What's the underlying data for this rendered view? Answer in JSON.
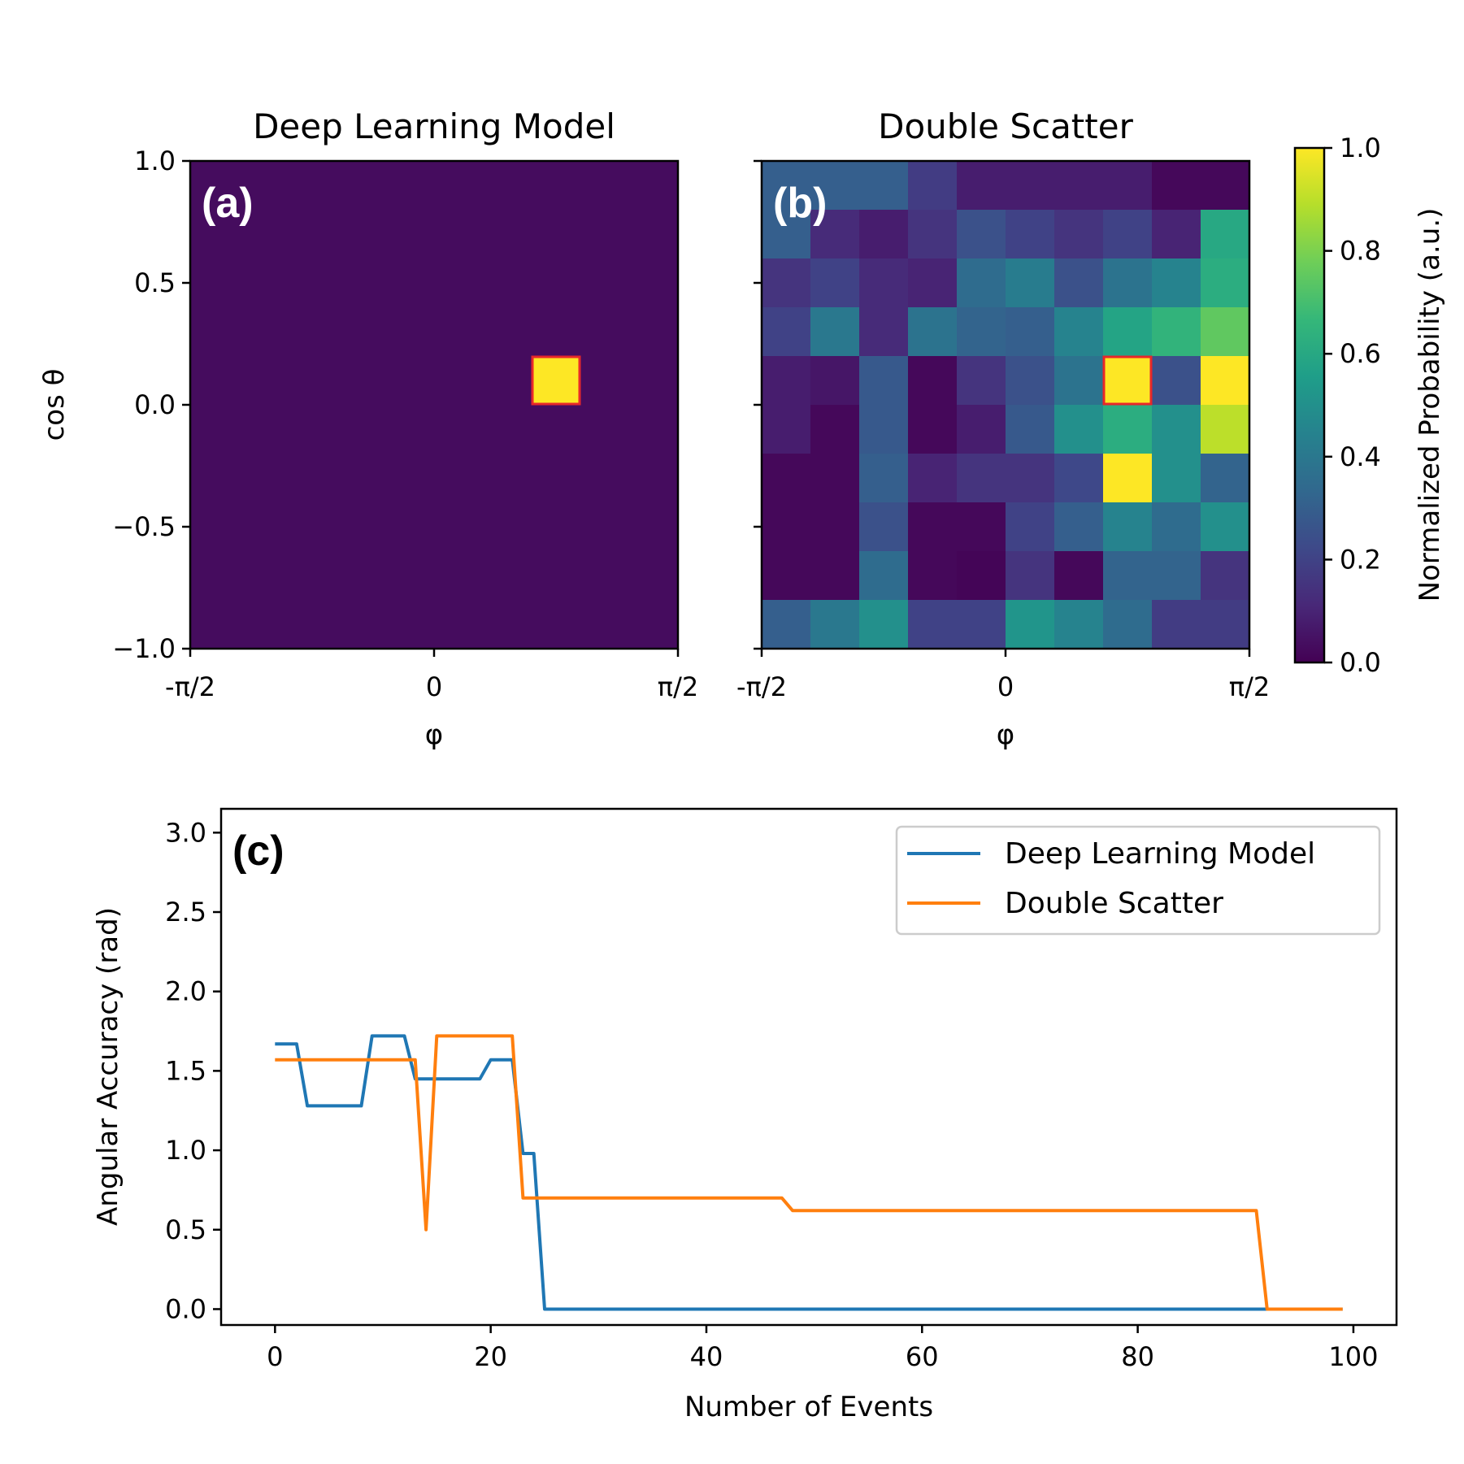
{
  "colormap": [
    "#440154",
    "#482878",
    "#3e4989",
    "#31688e",
    "#26828e",
    "#1f9e89",
    "#35b779",
    "#6ece58",
    "#b5de2b",
    "#fde725"
  ],
  "highlight_color": "#e8272a",
  "chart_data": [
    {
      "id": "a",
      "type": "heatmap",
      "panel_label": "(a)",
      "title": "Deep Learning Model",
      "xlabel": "φ",
      "ylabel": "cos θ",
      "xticks": [
        "-π/2",
        "0",
        "π/2"
      ],
      "yticks": [
        "1.0",
        "0.5",
        "0.0",
        "−0.5",
        "−1.0"
      ],
      "xlim": [
        -1.5708,
        1.5708
      ],
      "ylim": [
        -1.0,
        1.0
      ],
      "nx": 10,
      "ny": 10,
      "background_value": 0.03,
      "cells": [
        {
          "ix": 7,
          "iy": 5,
          "value": 1.0
        }
      ],
      "highlight_cell": {
        "ix": 7,
        "iy": 5
      }
    },
    {
      "id": "b",
      "type": "heatmap",
      "panel_label": "(b)",
      "title": "Double Scatter",
      "xlabel": "φ",
      "xticks": [
        "-π/2",
        "0",
        "π/2"
      ],
      "xlim": [
        -1.5708,
        1.5708
      ],
      "ylim": [
        -1.0,
        1.0
      ],
      "nx": 10,
      "ny": 10,
      "grid_rows_top_to_bottom": [
        [
          0.3,
          0.3,
          0.3,
          0.18,
          0.08,
          0.08,
          0.08,
          0.08,
          0.02,
          0.02
        ],
        [
          0.3,
          0.12,
          0.08,
          0.15,
          0.25,
          0.2,
          0.15,
          0.2,
          0.1,
          0.6
        ],
        [
          0.15,
          0.2,
          0.12,
          0.1,
          0.35,
          0.42,
          0.25,
          0.38,
          0.45,
          0.62
        ],
        [
          0.2,
          0.4,
          0.12,
          0.38,
          0.32,
          0.3,
          0.45,
          0.58,
          0.65,
          0.75
        ],
        [
          0.08,
          0.06,
          0.28,
          0.02,
          0.15,
          0.25,
          0.38,
          1.0,
          0.25,
          1.0
        ],
        [
          0.08,
          0.02,
          0.28,
          0.02,
          0.08,
          0.28,
          0.5,
          0.62,
          0.5,
          0.9
        ],
        [
          0.02,
          0.02,
          0.3,
          0.1,
          0.15,
          0.15,
          0.22,
          1.0,
          0.5,
          0.32
        ],
        [
          0.02,
          0.02,
          0.25,
          0.02,
          0.02,
          0.2,
          0.3,
          0.45,
          0.35,
          0.5
        ],
        [
          0.02,
          0.02,
          0.35,
          0.02,
          0.01,
          0.15,
          0.02,
          0.32,
          0.32,
          0.15
        ],
        [
          0.3,
          0.4,
          0.5,
          0.2,
          0.2,
          0.52,
          0.45,
          0.35,
          0.18,
          0.18
        ]
      ],
      "highlight_cell": {
        "ix": 7,
        "iy": 5
      }
    },
    {
      "id": "colorbar",
      "type": "colorbar",
      "label": "Normalized Probability (a.u.)",
      "range": [
        0.0,
        1.0
      ],
      "ticks": [
        "0.0",
        "0.2",
        "0.4",
        "0.6",
        "0.8",
        "1.0"
      ]
    },
    {
      "id": "c",
      "type": "line",
      "panel_label": "(c)",
      "xlabel": "Number of Events",
      "ylabel": "Angular Accuracy (rad)",
      "xlim": [
        -5,
        104
      ],
      "ylim": [
        -0.1,
        3.15
      ],
      "xticks": [
        "0",
        "20",
        "40",
        "60",
        "80",
        "100"
      ],
      "yticks": [
        "0.0",
        "0.5",
        "1.0",
        "1.5",
        "2.0",
        "2.5",
        "3.0"
      ],
      "legend_location": "upper right",
      "series": [
        {
          "name": "Deep Learning Model",
          "color": "#1f77b4",
          "points": [
            [
              0,
              1.67
            ],
            [
              2,
              1.67
            ],
            [
              3,
              1.28
            ],
            [
              8,
              1.28
            ],
            [
              9,
              1.72
            ],
            [
              12,
              1.72
            ],
            [
              13,
              1.45
            ],
            [
              19,
              1.45
            ],
            [
              20,
              1.57
            ],
            [
              22,
              1.57
            ],
            [
              23,
              0.98
            ],
            [
              24,
              0.98
            ],
            [
              25,
              0.0
            ],
            [
              92,
              0.0
            ],
            [
              99,
              0.0
            ]
          ]
        },
        {
          "name": "Double Scatter",
          "color": "#ff7f0e",
          "points": [
            [
              0,
              1.57
            ],
            [
              13,
              1.57
            ],
            [
              14,
              0.5
            ],
            [
              15,
              1.72
            ],
            [
              22,
              1.72
            ],
            [
              23,
              0.7
            ],
            [
              47,
              0.7
            ],
            [
              48,
              0.62
            ],
            [
              91,
              0.62
            ],
            [
              92,
              0.0
            ],
            [
              99,
              0.0
            ]
          ]
        }
      ]
    }
  ]
}
